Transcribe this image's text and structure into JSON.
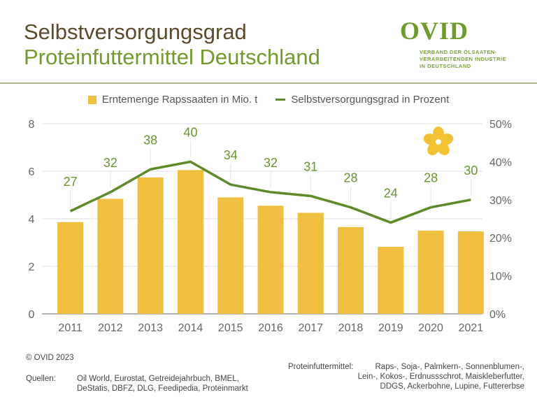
{
  "header": {
    "title_line1": "Selbstversorgungsgrad",
    "title_line2": "Proteinfuttermittel Deutschland"
  },
  "logo": {
    "name": "OVID",
    "subtitle": [
      "VERBAND DER ÖLSAATEN-",
      "VERARBEITENDEN INDUSTRIE",
      "IN DEUTSCHLAND"
    ]
  },
  "chart_data": {
    "type": "bar+line",
    "categories": [
      "2011",
      "2012",
      "2013",
      "2014",
      "2015",
      "2016",
      "2017",
      "2018",
      "2019",
      "2020",
      "2021"
    ],
    "series": [
      {
        "name": "Erntemenge Rapssaaten in Mio. t",
        "type": "bar",
        "axis": "left",
        "color": "#f0bf3f",
        "values": [
          3.86,
          4.84,
          5.74,
          6.05,
          4.9,
          4.55,
          4.25,
          3.65,
          2.82,
          3.5,
          3.47
        ]
      },
      {
        "name": "Selbstversorgungsgrad in Prozent",
        "type": "line",
        "axis": "right",
        "color": "#5f8a2a",
        "values": [
          27,
          32,
          38,
          40,
          34,
          32,
          31,
          28,
          24,
          28,
          30
        ],
        "data_labels": [
          "27",
          "32",
          "38",
          "40",
          "34",
          "32",
          "31",
          "28",
          "24",
          "28",
          "30"
        ]
      }
    ],
    "y_left": {
      "range": [
        0,
        8
      ],
      "ticks": [
        "0",
        "2",
        "4",
        "6",
        "8"
      ]
    },
    "y_right": {
      "range": [
        0,
        50
      ],
      "ticks": [
        "0%",
        "10%",
        "20%",
        "30%",
        "40%",
        "50%"
      ]
    },
    "grid": true,
    "legend_position": "top"
  },
  "footer": {
    "copyright": "© OVID 2023",
    "sources_label": "Quellen:",
    "sources": [
      "Oil World, Eurostat, Getreidejahrbuch, BMEL,",
      "DeStatis, DBFZ, DLG, Feedipedia, Proteinmarkt"
    ],
    "note_label": "Proteinfuttermittel:",
    "note": [
      "Raps-, Soja-, Palmkern-, Sonnenblumen-,",
      "Lein-, Kokos-, Erdnussschrot, Maiskleberfutter,",
      "DDGS, Ackerbohne, Lupine, Futtererbse"
    ]
  },
  "icons": {
    "flower": "rapeseed-flower-icon"
  }
}
